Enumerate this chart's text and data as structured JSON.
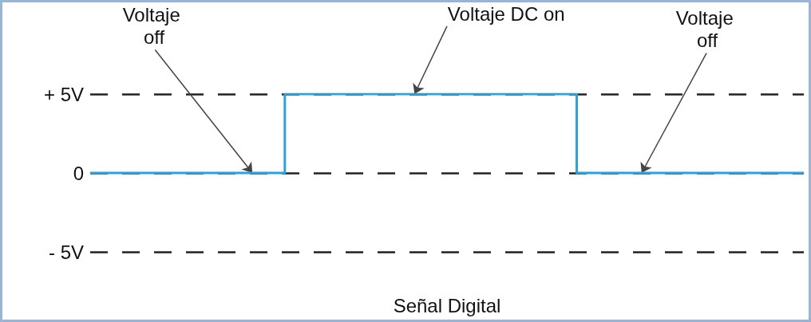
{
  "chart_data": {
    "type": "step",
    "xlabel": "Señal Digital",
    "categories": [
      null,
      null,
      null,
      null,
      null,
      null,
      null,
      null,
      null,
      null,
      null,
      null,
      null,
      null,
      null,
      null,
      null,
      null,
      null,
      null,
      null,
      null,
      null
    ],
    "series": [
      {
        "color": "#29a3dd",
        "values": [
          0,
          0,
          0,
          0,
          0,
          0,
          5,
          5,
          5,
          5,
          5,
          5,
          5,
          5,
          5,
          0,
          0,
          0,
          0,
          0,
          0,
          0,
          0
        ]
      }
    ],
    "ylim": [
      -5,
      5
    ],
    "yticks": [
      {
        "value": 5,
        "label": "+ 5V"
      },
      0,
      {
        "value": -5,
        "label": "- 5V"
      }
    ],
    "tick_labels": "y",
    "grid": "y",
    "marker": "none",
    "line_style": "solid",
    "annotations": [
      "Voltaje off",
      "Voltaje DC on",
      "Voltaje off"
    ]
  }
}
